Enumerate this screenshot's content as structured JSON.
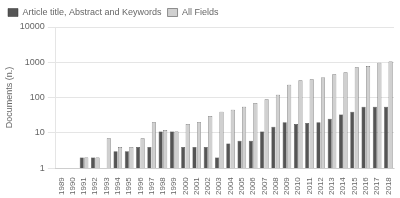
{
  "chart_data": {
    "type": "bar",
    "categories": [
      "1989",
      "1990",
      "1991",
      "1992",
      "1993",
      "1994",
      "1995",
      "1996",
      "1997",
      "1998",
      "1999",
      "2000",
      "2001",
      "2002",
      "2003",
      "2004",
      "2005",
      "2006",
      "2007",
      "2008",
      "2009",
      "2010",
      "2011",
      "2012",
      "2013",
      "2014",
      "2015",
      "2016",
      "2017",
      "2018"
    ],
    "series": [
      {
        "name": "Article title, Abstract and Keywords",
        "color": "#555555",
        "values": [
          1,
          1,
          2,
          2,
          1,
          3,
          3,
          4,
          4,
          11,
          11,
          4,
          4,
          4,
          2,
          5,
          6,
          6,
          11,
          15,
          20,
          18,
          19,
          20,
          25,
          33,
          40,
          55,
          55,
          55
        ]
      },
      {
        "name": "All Fields",
        "color": "#d0d0d0",
        "values": [
          1,
          1,
          2,
          2,
          7,
          4,
          4,
          7,
          20,
          12,
          11,
          18,
          20,
          30,
          40,
          45,
          55,
          70,
          90,
          120,
          230,
          310,
          330,
          370,
          460,
          520,
          730,
          790,
          970,
          1060
        ]
      }
    ],
    "ylabel": "Documents (n.)",
    "log": "y",
    "ylim": [
      1,
      10000
    ],
    "yticks": [
      1,
      10,
      100,
      1000,
      10000
    ],
    "grid": true,
    "legend": "upper left"
  }
}
